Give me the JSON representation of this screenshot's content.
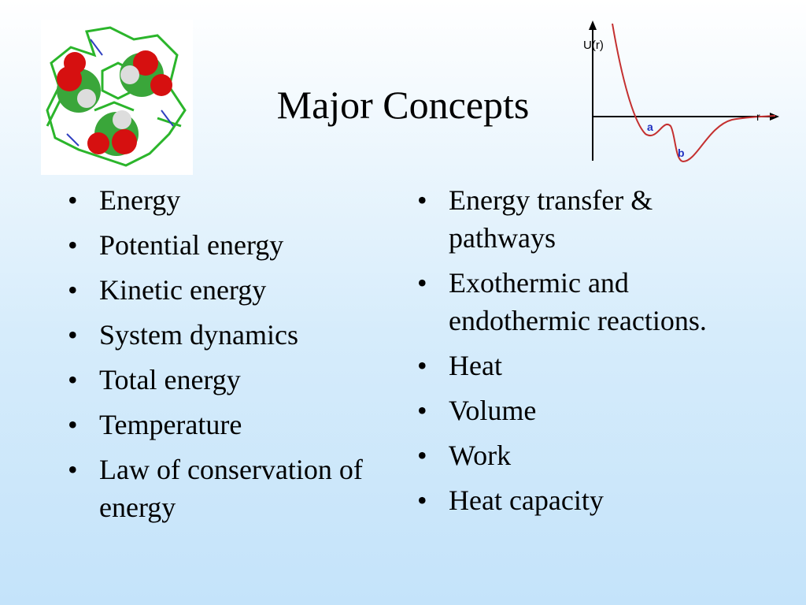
{
  "header": {
    "title": "Major Concepts"
  },
  "figure": {
    "y_axis_label": "U(r)",
    "x_axis_label": "r",
    "point_a": "a",
    "point_b": "b"
  },
  "left_list": [
    "Energy",
    "Potential energy",
    "Kinetic energy",
    "System dynamics",
    "Total energy",
    "Temperature",
    "Law of conservation of energy"
  ],
  "right_list": [
    "Energy transfer & pathways",
    "Exothermic and endothermic reactions.",
    "Heat",
    "Volume",
    "Work",
    "Heat capacity"
  ]
}
